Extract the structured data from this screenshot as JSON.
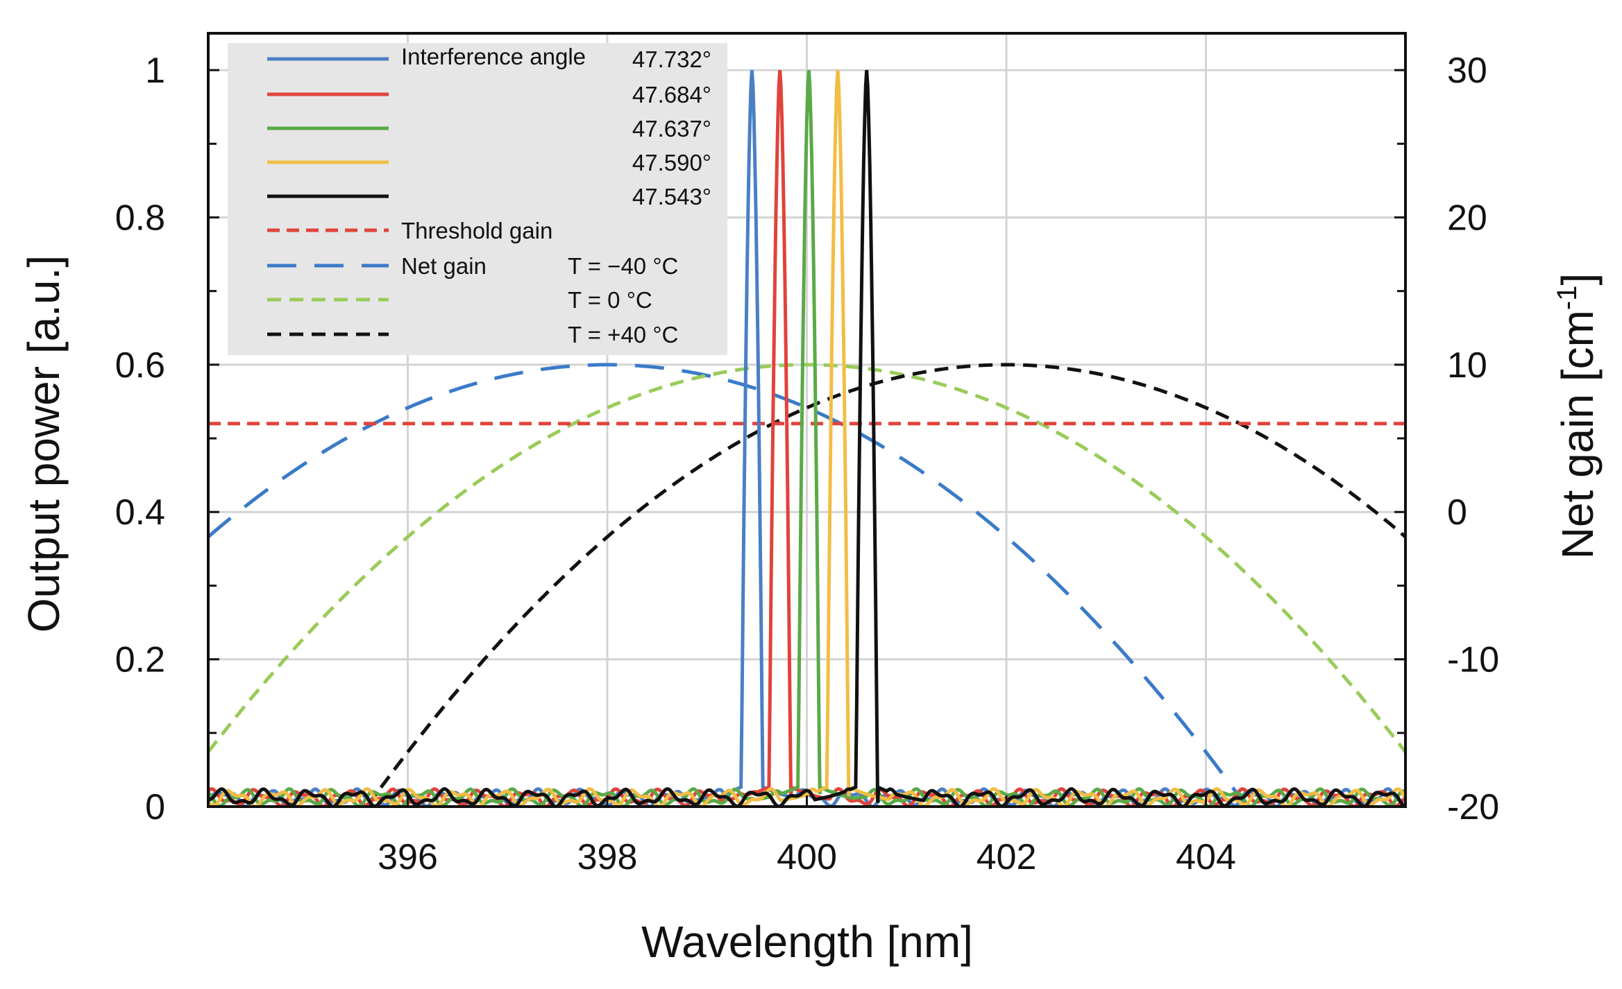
{
  "chart_data": {
    "type": "line",
    "xlabel": "Wavelength [nm]",
    "ylabel": "Output power [a.u.]",
    "y2label_main": "Net gain [cm",
    "y2label_sup": "-1",
    "y2label_end": "]",
    "xlim": [
      394,
      406
    ],
    "ylim": [
      0,
      1.05
    ],
    "y2lim": [
      -20,
      32.5
    ],
    "xticks": [
      396,
      398,
      400,
      402,
      404
    ],
    "xtick_labels": [
      "396",
      "398",
      "400",
      "402",
      "404"
    ],
    "yticks": [
      0,
      0.2,
      0.4,
      0.6,
      0.8,
      1
    ],
    "ytick_labels": [
      "0",
      "0.2",
      "0.4",
      "0.6",
      "0.8",
      "1"
    ],
    "y2ticks": [
      -20,
      -10,
      0,
      10,
      20,
      30
    ],
    "y2tick_labels": [
      "-20",
      "-10",
      "0",
      "10",
      "20",
      "30"
    ],
    "grid": true,
    "legend_position": "top-left",
    "legend": {
      "interference_label": "Interference angle",
      "threshold_label": "Threshold gain",
      "netgain_label": "Net gain"
    },
    "power_series": [
      {
        "name": "47.732°",
        "color": "#4a7fc6",
        "peak_nm": 399.45,
        "peak_value": 1.0
      },
      {
        "name": "47.684°",
        "color": "#e0433a",
        "peak_nm": 399.73,
        "peak_value": 1.0
      },
      {
        "name": "47.637°",
        "color": "#5aaa47",
        "peak_nm": 400.02,
        "peak_value": 1.0
      },
      {
        "name": "47.590°",
        "color": "#f2bd45",
        "peak_nm": 400.31,
        "peak_value": 1.0
      },
      {
        "name": "47.543°",
        "color": "#111111",
        "peak_nm": 400.6,
        "peak_value": 1.0
      }
    ],
    "threshold_gain": {
      "name": "Threshold gain",
      "color": "#e0433a",
      "value_cm": 6
    },
    "net_gain_series": [
      {
        "name": "T = −40 °C",
        "color": "#3a7bc8",
        "peak_nm": 398,
        "peak_gain_cm": 10,
        "zero_gain_halfwidth_nm": 3.7
      },
      {
        "name": "T =      0 °C",
        "color": "#9acb5a",
        "peak_nm": 400,
        "peak_gain_cm": 10,
        "zero_gain_halfwidth_nm": 3.7
      },
      {
        "name": "T =  +40 °C",
        "color": "#111111",
        "peak_nm": 402,
        "peak_gain_cm": 10,
        "zero_gain_halfwidth_nm": 3.7
      }
    ]
  }
}
